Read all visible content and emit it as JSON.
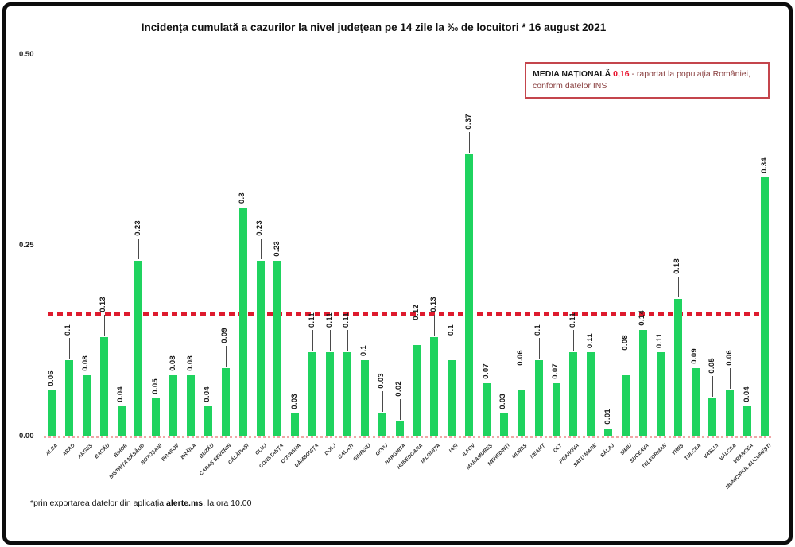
{
  "title": "Incidența cumulată a cazurilor la nivel județean pe 14 zile la ‰ de locuitori * 16 august 2021",
  "media_box": {
    "label": "MEDIA NAȚIONALĂ",
    "value": "0,16",
    "text": "- raportat la populația României, conform datelor INS",
    "value_color": "#e8112d",
    "border_color": "#c4454c"
  },
  "footnote": {
    "prefix": "*prin exportarea datelor din aplicația ",
    "bold": "alerte.ms",
    "suffix": ", la ora 10.00"
  },
  "chart_data": {
    "type": "bar",
    "title": "Incidența cumulată a cazurilor la nivel județean pe 14 zile la ‰ de locuitori * 16 august 2021",
    "xlabel": "",
    "ylabel": "",
    "ylim": [
      0,
      0.5
    ],
    "yticks": [
      {
        "label": "0.50",
        "value": 0.5
      },
      {
        "label": "0.25",
        "value": 0.25
      },
      {
        "label": "0.00",
        "value": 0
      }
    ],
    "grid": false,
    "bar_color": "#1fd35f",
    "average_line": {
      "value": 0.16,
      "color": "#de1b2e",
      "style": "dashed"
    },
    "categories": [
      "ALBA",
      "ARAD",
      "ARGEȘ",
      "BACĂU",
      "BIHOR",
      "BISTRIȚA NĂSĂUD",
      "BOTOȘANI",
      "BRAȘOV",
      "BRĂILA",
      "BUZĂU",
      "CARAȘ SEVERIN",
      "CĂLĂRAȘI",
      "CLUJ",
      "CONSTANȚA",
      "COVASNA",
      "DÂMBOVIȚA",
      "DOLJ",
      "GALAȚI",
      "GIURGIU",
      "GORJ",
      "HARGHITA",
      "HUNEDOARA",
      "IALOMIȚA",
      "IAȘI",
      "ILFOV",
      "MARAMUREȘ",
      "MEHEDINȚI",
      "MUREȘ",
      "NEAMȚ",
      "OLT",
      "PRAHOVA",
      "SATU MARE",
      "SĂLAJ",
      "SIBIU",
      "SUCEAVA",
      "TELEORMAN",
      "TIMIȘ",
      "TULCEA",
      "VASLUI",
      "VÂLCEA",
      "VRANCEA",
      "MUNICIPIUL BUCUREȘTI"
    ],
    "values": [
      0.06,
      0.1,
      0.08,
      0.13,
      0.04,
      0.23,
      0.05,
      0.08,
      0.08,
      0.04,
      0.09,
      0.3,
      0.23,
      0.23,
      0.03,
      0.11,
      0.11,
      0.11,
      0.1,
      0.03,
      0.02,
      0.12,
      0.13,
      0.1,
      0.37,
      0.07,
      0.03,
      0.06,
      0.1,
      0.07,
      0.11,
      0.11,
      0.01,
      0.08,
      0.14,
      0.11,
      0.18,
      0.09,
      0.05,
      0.06,
      0.04,
      0.34
    ],
    "labels": [
      "0.06",
      "0.1",
      "0.08",
      "0.13",
      "0.04",
      "0.23",
      "0.05",
      "0.08",
      "0.08",
      "0.04",
      "0.09",
      "0.3",
      "0.23",
      "0.23",
      "0.03",
      "0.11",
      "0.11",
      "0.11",
      "0.1",
      "0.03",
      "0.02",
      "0.12",
      "0.13",
      "0.1",
      "0.37",
      "0.07",
      "0.03",
      "0.06",
      "0.1",
      "0.07",
      "0.11",
      "0.11",
      "0.01",
      "0.08",
      "0.14",
      "0.11",
      "0.18",
      "0.09",
      "0.05",
      "0.06",
      "0.04",
      "0.34"
    ],
    "leaders": [
      false,
      true,
      false,
      true,
      false,
      true,
      false,
      false,
      false,
      false,
      true,
      false,
      true,
      false,
      false,
      true,
      true,
      true,
      false,
      true,
      true,
      true,
      true,
      true,
      true,
      false,
      false,
      true,
      true,
      false,
      true,
      false,
      false,
      true,
      false,
      false,
      true,
      false,
      true,
      true,
      false,
      false
    ],
    "legend": null
  }
}
